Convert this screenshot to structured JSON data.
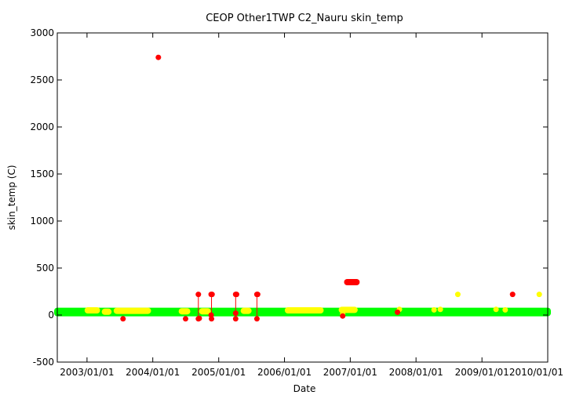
{
  "chart_data": {
    "type": "scatter",
    "title": "CEOP Other1TWP C2_Nauru  skin_temp",
    "xlabel": "Date",
    "ylabel": "skin_temp (C)",
    "ylim": [
      -500,
      3000
    ],
    "xlim": [
      "2002-07-20",
      "2010-01-01"
    ],
    "yticks": [
      "-500",
      "0",
      "500",
      "1000",
      "1500",
      "2000",
      "2500",
      "3000"
    ],
    "xticks": [
      "2003/01/01",
      "2004/01/01",
      "2005/01/01",
      "2006/01/01",
      "2007/01/01",
      "2008/01/01",
      "2009/01/01",
      "2010/01/01"
    ],
    "grid": false,
    "legend": "none",
    "colors": {
      "good": "#00ff00",
      "questionable": "#ffff00",
      "bad": "#ff0000"
    },
    "green_band": {
      "x_start": "2002-07-20",
      "x_end": "2010-01-01",
      "y_low": 20,
      "y_high": 45
    },
    "yellow_clusters": [
      {
        "x_start": "2003-01-05",
        "x_end": "2003-02-25",
        "y": 50
      },
      {
        "x_start": "2003-04-10",
        "x_end": "2003-04-30",
        "y": 35
      },
      {
        "x_start": "2003-06-15",
        "x_end": "2003-12-05",
        "y": 45
      },
      {
        "x_start": "2004-06-10",
        "x_end": "2004-07-10",
        "y": 40
      },
      {
        "x_start": "2004-10-01",
        "x_end": "2004-11-01",
        "y": 40
      },
      {
        "x_start": "2005-05-20",
        "x_end": "2005-06-15",
        "y": 45
      },
      {
        "x_start": "2006-01-20",
        "x_end": "2006-07-20",
        "y": 50
      },
      {
        "x_start": "2006-11-15",
        "x_end": "2007-01-25",
        "y": 55
      }
    ],
    "yellow_points": [
      {
        "x": "2006-11-20",
        "y": 10
      },
      {
        "x": "2007-10-01",
        "y": 60
      },
      {
        "x": "2008-04-10",
        "y": 55
      },
      {
        "x": "2008-05-15",
        "y": 60
      },
      {
        "x": "2008-08-20",
        "y": 220
      },
      {
        "x": "2009-03-20",
        "y": 60
      },
      {
        "x": "2009-05-10",
        "y": 55
      },
      {
        "x": "2009-11-15",
        "y": 220
      }
    ],
    "red_points": [
      {
        "x": "2004-02-01",
        "y": 2740
      },
      {
        "x": "2003-07-20",
        "y": -40
      },
      {
        "x": "2004-07-01",
        "y": -40
      },
      {
        "x": "2004-09-10",
        "y": 220
      },
      {
        "x": "2004-09-10",
        "y": -40
      },
      {
        "x": "2004-09-15",
        "y": -35
      },
      {
        "x": "2004-11-20",
        "y": 220
      },
      {
        "x": "2004-11-25",
        "y": 220
      },
      {
        "x": "2004-11-20",
        "y": 0
      },
      {
        "x": "2004-11-22",
        "y": -40
      },
      {
        "x": "2005-04-05",
        "y": 220
      },
      {
        "x": "2005-04-10",
        "y": 220
      },
      {
        "x": "2005-04-05",
        "y": 20
      },
      {
        "x": "2005-04-05",
        "y": -40
      },
      {
        "x": "2005-08-01",
        "y": 220
      },
      {
        "x": "2005-08-05",
        "y": 220
      },
      {
        "x": "2005-08-01",
        "y": -40
      },
      {
        "x": "2006-11-20",
        "y": -10
      },
      {
        "x": "2007-09-20",
        "y": 30
      },
      {
        "x": "2009-06-20",
        "y": 220
      }
    ],
    "red_cluster": {
      "x_start": "2006-12-15",
      "x_end": "2007-02-05",
      "y": 350
    },
    "red_spikes": [
      {
        "x": "2004-09-10",
        "y_from": -40,
        "y_to": 220
      },
      {
        "x": "2004-11-22",
        "y_from": -40,
        "y_to": 220
      },
      {
        "x": "2005-04-05",
        "y_from": -40,
        "y_to": 220
      },
      {
        "x": "2005-08-01",
        "y_from": -40,
        "y_to": 220
      }
    ]
  }
}
